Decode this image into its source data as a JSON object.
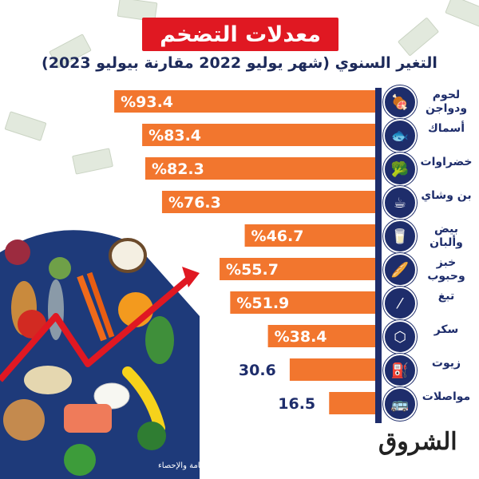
{
  "header": {
    "title": "معدلات التضخم",
    "subtitle": "التغير السنوي (شهر يوليو 2022 مقارنة بيوليو 2023)"
  },
  "colors": {
    "bar": "#f2762e",
    "navy": "#1e2d6b",
    "title_bg": "#e01822"
  },
  "chart_data": {
    "type": "bar",
    "orientation": "horizontal",
    "title": "معدلات التضخم",
    "subtitle": "التغير السنوي (شهر يوليو 2022 مقارنة بيوليو 2023)",
    "categories": [
      "لحوم ودواجن",
      "أسماك",
      "خضراوات",
      "بن وشاي",
      "بيض وألبان",
      "خبز وحبوب",
      "تبغ",
      "سكر",
      "زيوت",
      "مواصلات"
    ],
    "values": [
      93.4,
      83.4,
      82.3,
      76.3,
      46.7,
      55.7,
      51.9,
      38.4,
      30.6,
      16.5
    ],
    "value_labels": [
      "%93.4",
      "%83.4",
      "%82.3",
      "%76.3",
      "%46.7",
      "%55.7",
      "%51.9",
      "%38.4",
      "30.6",
      "16.5"
    ],
    "xlim": [
      0,
      100
    ],
    "grid": false,
    "legend": "none"
  },
  "icons": [
    "meat-icon",
    "fish-icon",
    "vegetables-icon",
    "coffee-icon",
    "dairy-icon",
    "bread-icon",
    "tobacco-icon",
    "sugar-icon",
    "oil-icon",
    "bus-icon"
  ],
  "footer": {
    "logo": "الشروق",
    "source": "المصدر: الجهاز المركزي للتعبئة العامة والإحصاء"
  }
}
